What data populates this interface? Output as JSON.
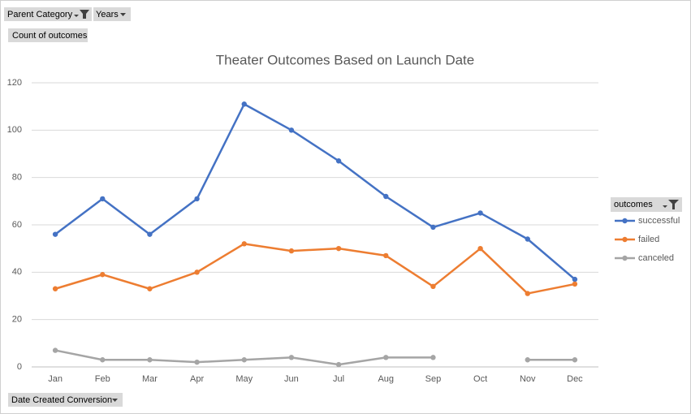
{
  "chart_data": {
    "type": "line",
    "title": "Theater Outcomes Based on Launch Date",
    "filters": [
      "Parent Category",
      "Years"
    ],
    "value_field": "Count of outcomes",
    "axis_field": "Date Created Conversion",
    "legend_title": "outcomes",
    "legend": "right",
    "grid": true,
    "categories": [
      "Jan",
      "Feb",
      "Mar",
      "Apr",
      "May",
      "Jun",
      "Jul",
      "Aug",
      "Sep",
      "Oct",
      "Nov",
      "Dec"
    ],
    "series": [
      {
        "name": "successful",
        "color": "#4472c4",
        "values": [
          56,
          71,
          56,
          71,
          111,
          100,
          87,
          72,
          59,
          65,
          54,
          37
        ]
      },
      {
        "name": "failed",
        "color": "#ed7d31",
        "values": [
          33,
          39,
          33,
          40,
          52,
          49,
          50,
          47,
          34,
          50,
          31,
          35
        ]
      },
      {
        "name": "canceled",
        "color": "#a5a5a5",
        "values": [
          7,
          3,
          3,
          2,
          3,
          4,
          1,
          4,
          4,
          null,
          3,
          3
        ]
      }
    ],
    "ylim": [
      0,
      120
    ],
    "yticks": [
      0,
      20,
      40,
      60,
      80,
      100,
      120
    ]
  }
}
